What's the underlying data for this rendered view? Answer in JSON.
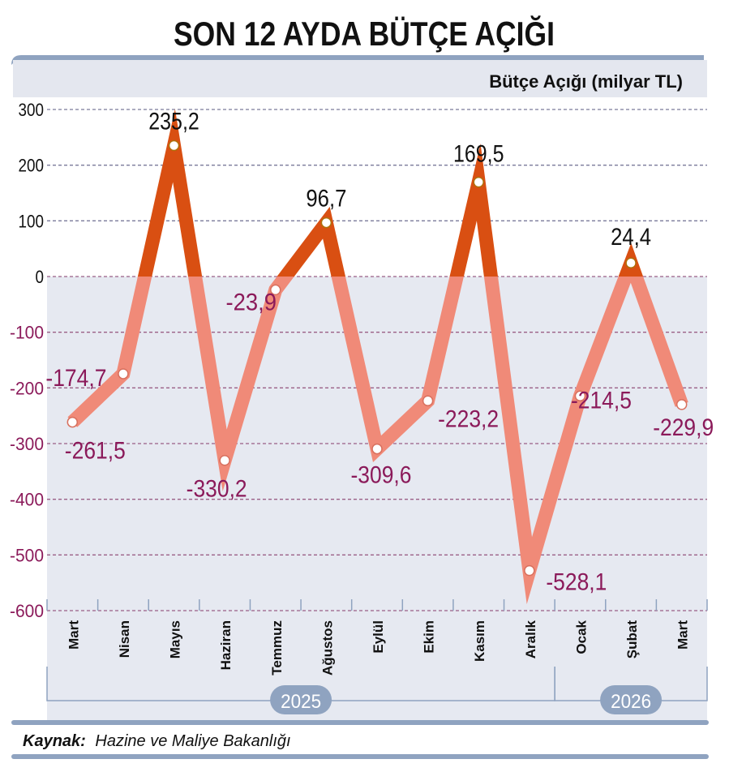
{
  "chart_data": {
    "type": "line",
    "title": "SON 12 AYDA BÜTÇE AÇIĞI",
    "ylabel": "Bütçe Açığı (milyar TL)",
    "xlabel": "",
    "ylim": [
      -600,
      300
    ],
    "yticks": [
      300,
      200,
      100,
      0,
      -100,
      -200,
      -300,
      -400,
      -500,
      -600
    ],
    "grid": true,
    "categories": [
      "Mart",
      "Nisan",
      "Mayıs",
      "Haziran",
      "Temmuz",
      "Ağustos",
      "Eylül",
      "Ekim",
      "Kasım",
      "Aralık",
      "Ocak",
      "Şubat",
      "Mart"
    ],
    "values": [
      -261.5,
      -174.7,
      235.2,
      -330.2,
      -23.9,
      96.7,
      -309.6,
      -223.2,
      169.5,
      -528.1,
      -214.5,
      24.4,
      -229.9
    ],
    "value_labels": [
      "-261,5",
      "-174,7",
      "235,2",
      "-330,2",
      "-23,9",
      "96,7",
      "-309,6",
      "-223,2",
      "169,5",
      "-528,1",
      "-214,5",
      "24,4",
      "-229,9"
    ],
    "years": [
      {
        "label": "2025",
        "months": 10
      },
      {
        "label": "2026",
        "months": 3
      }
    ],
    "colors": {
      "positive_line": "#d94f12",
      "negative_line": "#f08a78",
      "positive_label": "#111111",
      "negative_label": "#8b1a5a",
      "negative_area": "#e6e9f1",
      "frame": "#8fa3c0"
    }
  },
  "source": {
    "label": "Kaynak:",
    "text": "Hazine ve Maliye Bakanlığı"
  }
}
